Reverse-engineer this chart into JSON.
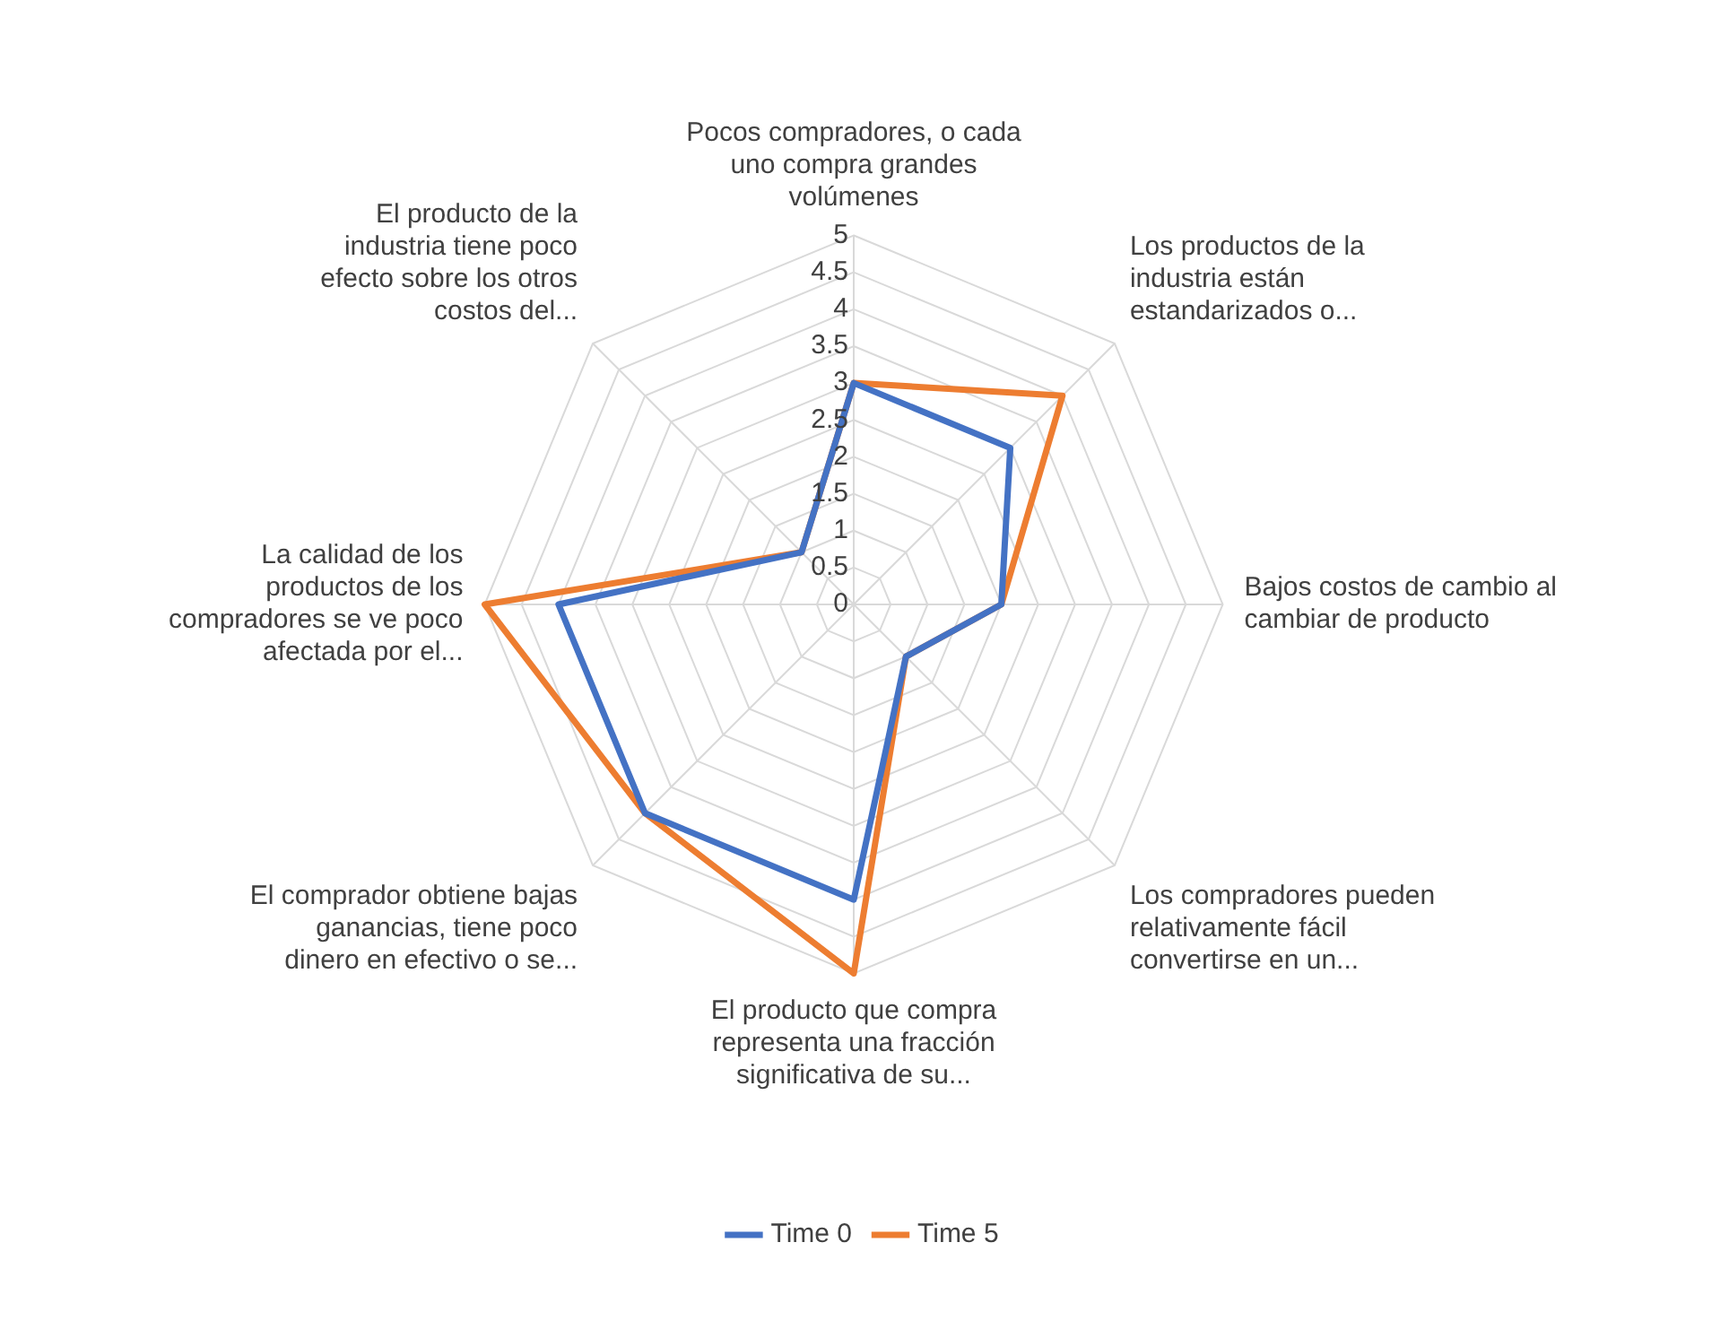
{
  "chart_data": {
    "type": "radar",
    "categories": [
      "Pocos compradores, o cada uno compra grandes volúmenes",
      "Los productos de la industria están estandarizados o...",
      "Bajos costos de cambio al cambiar de producto",
      "Los compradores pueden relativamente fácil convertirse en un...",
      "El producto que compra representa una fracción significativa de su...",
      "El comprador obtiene bajas ganancias, tiene poco dinero en efectivo o se...",
      "La calidad de los productos de los compradores se ve poco afectada por el...",
      "El producto de la industria tiene poco efecto sobre los otros costos del..."
    ],
    "series": [
      {
        "name": "Time 0",
        "color": "#4472c4",
        "values": [
          3,
          3,
          2,
          1,
          4,
          4,
          4,
          1
        ]
      },
      {
        "name": "Time 5",
        "color": "#ed7d31",
        "values": [
          3,
          4,
          2,
          1,
          5,
          4,
          5,
          1
        ]
      }
    ],
    "ylim": [
      0,
      5
    ],
    "yticks": [
      0,
      0.5,
      1,
      1.5,
      2,
      2.5,
      3,
      3.5,
      4,
      4.5,
      5
    ],
    "grid": true,
    "legend": "bottom",
    "marker": "none",
    "line_style": "solid"
  }
}
